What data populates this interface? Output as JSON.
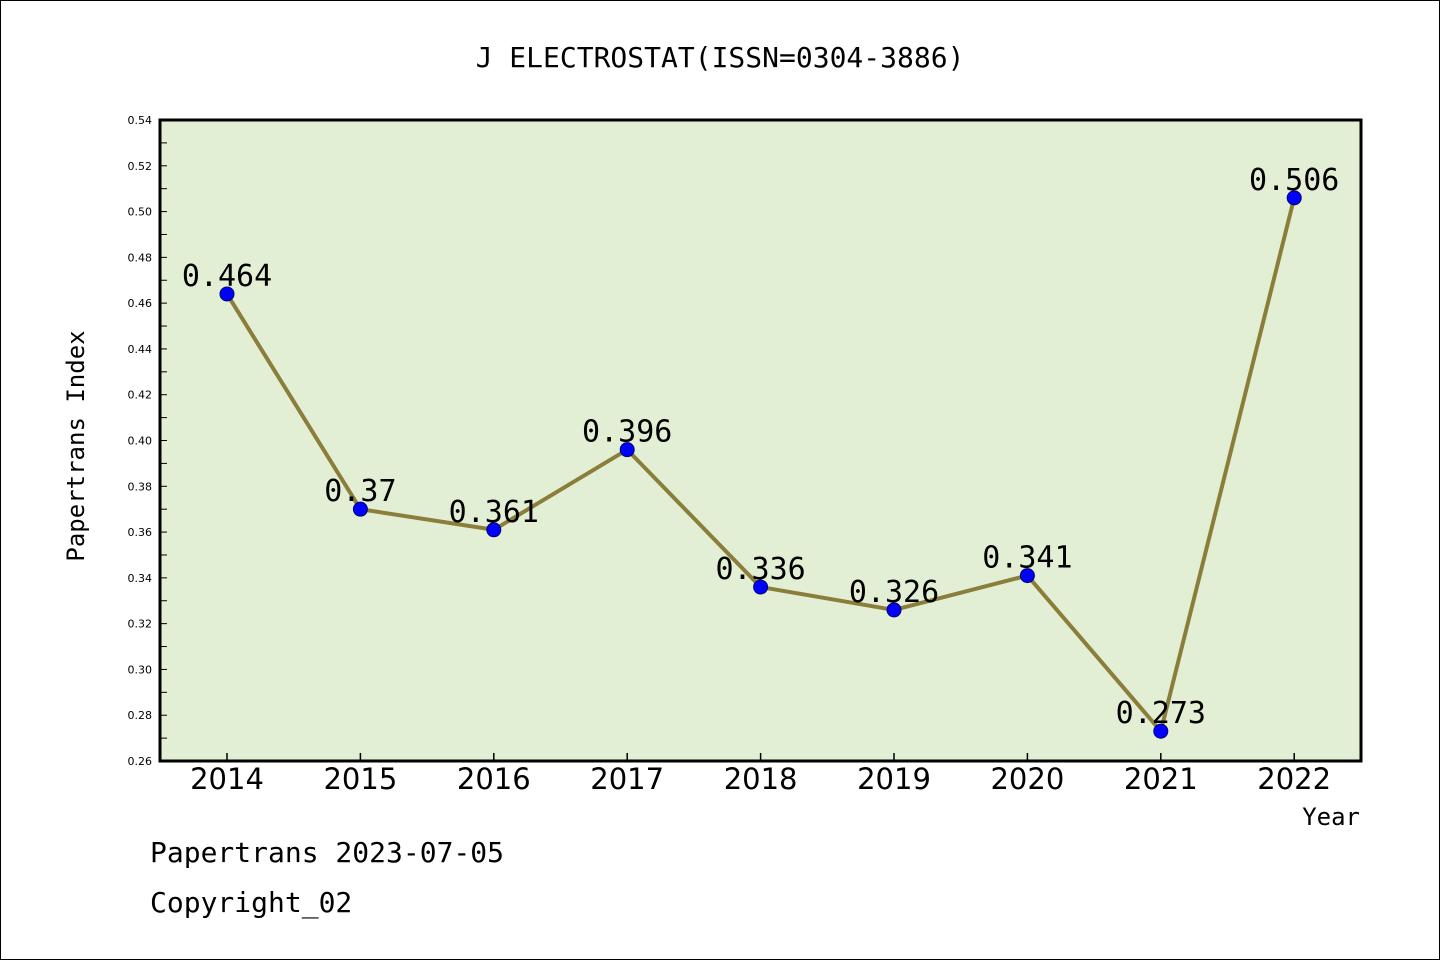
{
  "chart_data": {
    "type": "line",
    "title": "J ELECTROSTAT(ISSN=0304-3886)",
    "xlabel": "Year",
    "ylabel": "Papertrans Index",
    "categories": [
      "2014",
      "2015",
      "2016",
      "2017",
      "2018",
      "2019",
      "2020",
      "2021",
      "2022"
    ],
    "values": [
      0.464,
      0.37,
      0.361,
      0.396,
      0.336,
      0.326,
      0.341,
      0.273,
      0.506
    ],
    "data_labels": [
      "0.464",
      "0.37",
      "0.361",
      "0.396",
      "0.336",
      "0.326",
      "0.341",
      "0.273",
      "0.506"
    ],
    "ylim": [
      0.26,
      0.54
    ],
    "yticks": [
      "0.26",
      "0.28",
      "0.30",
      "0.32",
      "0.34",
      "0.36",
      "0.38",
      "0.40",
      "0.42",
      "0.44",
      "0.46",
      "0.48",
      "0.50",
      "0.52",
      "0.54"
    ],
    "grid": false,
    "legend": "none",
    "colors": {
      "plot_background": "#e2efd5",
      "line": "#8b7e3a",
      "marker": "#0000ff"
    }
  },
  "footer": {
    "line1": "Papertrans 2023-07-05",
    "line2": "Copyright_02"
  }
}
